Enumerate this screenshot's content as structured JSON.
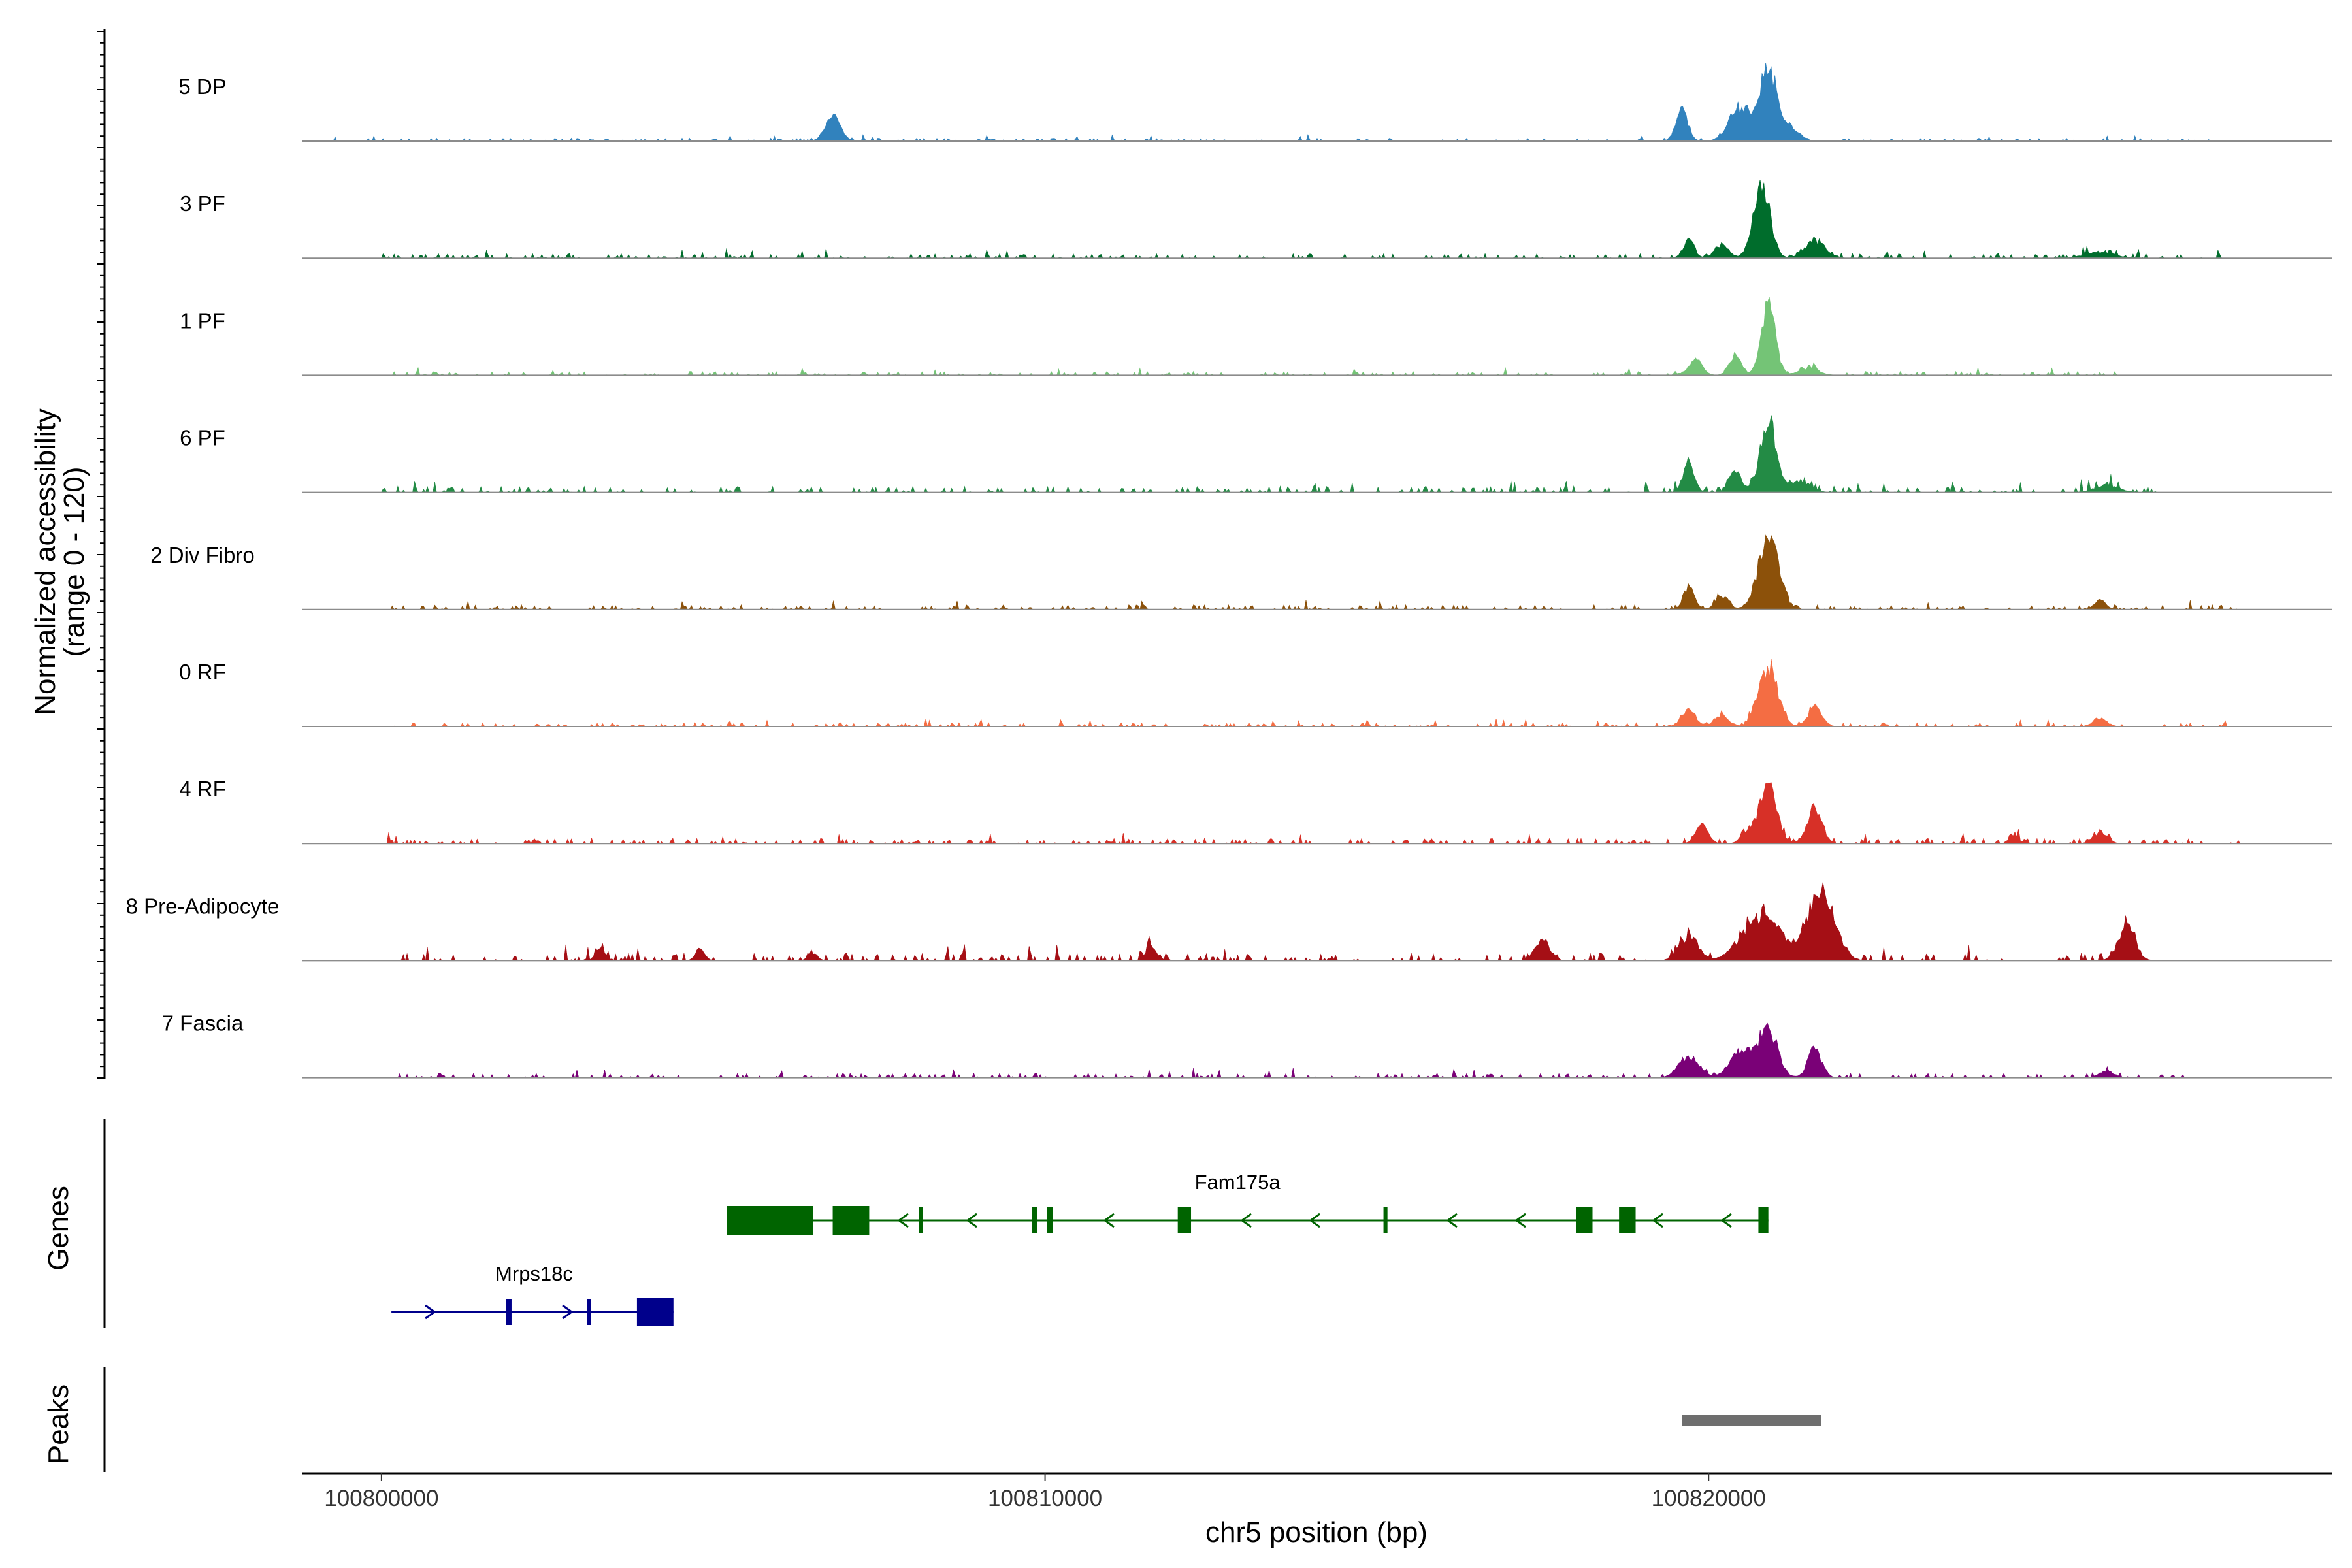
{
  "chart_data": {
    "type": "area",
    "title": "",
    "xlabel": "chr5 position (bp)",
    "ylabel_line1": "Normalized accessibility",
    "ylabel_line2": "(range 0 - 120)",
    "ylim": [
      0,
      120
    ],
    "xlim": [
      100798800,
      100829400
    ],
    "x_ticks": [
      100800000,
      100810000,
      100820000
    ],
    "x_tick_labels": [
      "100800000",
      "100810000",
      "100820000"
    ],
    "panel_titles": {
      "genes": "Genes",
      "peaks": "Peaks"
    },
    "tracks": [
      {
        "name": "5 DP",
        "color": "#3182BD",
        "peaks": [
          [
            100806800,
            40,
            160
          ],
          [
            100819600,
            50,
            130
          ],
          [
            100820500,
            55,
            250
          ],
          [
            100820900,
            120,
            160
          ],
          [
            100821200,
            25,
            200
          ]
        ],
        "noise": 4,
        "range": [
          100799200,
          100828000
        ]
      },
      {
        "name": "3 PF",
        "color": "#006D2C",
        "peaks": [
          [
            100819700,
            30,
            120
          ],
          [
            100820200,
            22,
            150
          ],
          [
            100820800,
            110,
            180
          ],
          [
            100821600,
            28,
            220
          ],
          [
            100825900,
            10,
            300
          ]
        ],
        "noise": 6,
        "range": [
          100800000,
          100827900
        ]
      },
      {
        "name": "1 PF",
        "color": "#74C476",
        "peaks": [
          [
            100819800,
            25,
            150
          ],
          [
            100820400,
            30,
            130
          ],
          [
            100820900,
            115,
            150
          ],
          [
            100821500,
            10,
            220
          ]
        ],
        "noise": 5,
        "range": [
          100800000,
          100826200
        ]
      },
      {
        "name": "6 PF",
        "color": "#238B45",
        "peaks": [
          [
            100819700,
            45,
            120
          ],
          [
            100820400,
            35,
            130
          ],
          [
            100820900,
            115,
            180
          ],
          [
            100821400,
            18,
            200
          ],
          [
            100826000,
            12,
            250
          ]
        ],
        "noise": 8,
        "range": [
          100800000,
          100827000
        ]
      },
      {
        "name": "2 Div Fibro",
        "color": "#8C510A",
        "peaks": [
          [
            100819700,
            35,
            120
          ],
          [
            100820200,
            22,
            140
          ],
          [
            100820900,
            115,
            220
          ],
          [
            100825900,
            15,
            120
          ]
        ],
        "noise": 6,
        "range": [
          100800000,
          100828000
        ]
      },
      {
        "name": "0 RF",
        "color": "#F46D43",
        "peaks": [
          [
            100819700,
            28,
            150
          ],
          [
            100820200,
            18,
            150
          ],
          [
            100820900,
            100,
            200
          ],
          [
            100821600,
            30,
            150
          ],
          [
            100825900,
            12,
            150
          ]
        ],
        "noise": 5,
        "range": [
          100800000,
          100828000
        ]
      },
      {
        "name": "4 RF",
        "color": "#D73027",
        "peaks": [
          [
            100819900,
            30,
            130
          ],
          [
            100820600,
            22,
            140
          ],
          [
            100820900,
            95,
            180
          ],
          [
            100821600,
            60,
            150
          ],
          [
            100825900,
            18,
            150
          ],
          [
            100824600,
            12,
            100
          ]
        ],
        "noise": 7,
        "range": [
          100800000,
          100828000
        ]
      },
      {
        "name": "8 Pre-Adipocyte",
        "color": "#A50F15",
        "peaks": [
          [
            100819700,
            40,
            200
          ],
          [
            100820800,
            75,
            400
          ],
          [
            100821700,
            120,
            280
          ],
          [
            100826300,
            55,
            180
          ],
          [
            100817500,
            35,
            150
          ],
          [
            100806500,
            12,
            100
          ],
          [
            100811600,
            22,
            120
          ],
          [
            100804800,
            20,
            100
          ],
          [
            100803300,
            22,
            100
          ]
        ],
        "noise": 10,
        "range": [
          100800200,
          100826500
        ]
      },
      {
        "name": "7 Fascia",
        "color": "#7A0177",
        "peaks": [
          [
            100819700,
            35,
            220
          ],
          [
            100820500,
            45,
            250
          ],
          [
            100820900,
            75,
            200
          ],
          [
            100821600,
            45,
            150
          ],
          [
            100826000,
            12,
            150
          ]
        ],
        "noise": 6,
        "range": [
          100800000,
          100827200
        ]
      }
    ],
    "genes": [
      {
        "name": "Mrps18c",
        "color": "#00008B",
        "strand": "+",
        "start": 100800150,
        "end": 100804400,
        "exons": [
          [
            100801880,
            100801960
          ],
          [
            100803100,
            100803160
          ],
          [
            100803850,
            100804400
          ]
        ]
      },
      {
        "name": "Fam175a",
        "color": "#006400",
        "strand": "-",
        "start": 100805200,
        "end": 100820900,
        "exons": [
          [
            100805200,
            100806500
          ],
          [
            100806800,
            100807350
          ],
          [
            100808100,
            100808160
          ],
          [
            100809800,
            100809880
          ],
          [
            100810030,
            100810120
          ],
          [
            100812000,
            100812200
          ],
          [
            100815100,
            100815160
          ],
          [
            100818000,
            100818250
          ],
          [
            100818650,
            100818900
          ],
          [
            100820750,
            100820900
          ]
        ]
      }
    ],
    "peaks": [
      [
        100819600,
        100821700
      ]
    ]
  }
}
